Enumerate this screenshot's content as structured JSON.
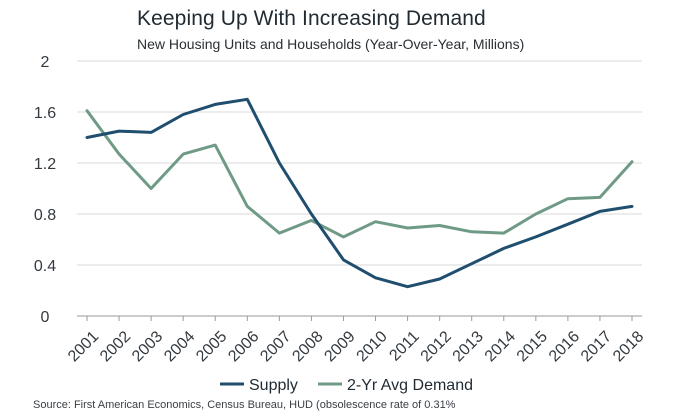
{
  "header": {
    "title": "Keeping Up With Increasing Demand",
    "subtitle": "New Housing Units and Households (Year-Over-Year, Millions)"
  },
  "footer": {
    "source": "Source: First American Economics, Census  Bureau, HUD (obsolescence rate of 0.31%"
  },
  "colors": {
    "supply": "#1f4e6e",
    "demand": "#6f9a86",
    "grid": "#d9d9d9",
    "axis": "#9a9a9a"
  },
  "chart_data": {
    "type": "line",
    "title": "Keeping Up With Increasing Demand",
    "subtitle": "New Housing Units and Households (Year-Over-Year, Millions)",
    "x": [
      "2001",
      "2002",
      "2003",
      "2004",
      "2005",
      "2006",
      "2007",
      "2008",
      "2009",
      "2010",
      "2011",
      "2012",
      "2013",
      "2014",
      "2015",
      "2016",
      "2017",
      "2018"
    ],
    "yticks": [
      "0",
      "0.4",
      "0.8",
      "1.2",
      "1.6",
      "2"
    ],
    "ylim": [
      0,
      2
    ],
    "grid": "horizontal",
    "legend_position": "bottom",
    "series": [
      {
        "name": "Supply",
        "color": "#1f4e6e",
        "values": [
          1.4,
          1.45,
          1.44,
          1.58,
          1.66,
          1.7,
          1.2,
          0.8,
          0.44,
          0.3,
          0.23,
          0.29,
          0.41,
          0.53,
          0.62,
          0.72,
          0.82,
          0.86
        ]
      },
      {
        "name": "2-Yr Avg Demand",
        "color": "#6f9a86",
        "values": [
          1.61,
          1.27,
          1.0,
          1.27,
          1.34,
          0.86,
          0.65,
          0.75,
          0.62,
          0.74,
          0.69,
          0.71,
          0.66,
          0.65,
          0.8,
          0.92,
          0.93,
          1.21
        ]
      }
    ]
  }
}
